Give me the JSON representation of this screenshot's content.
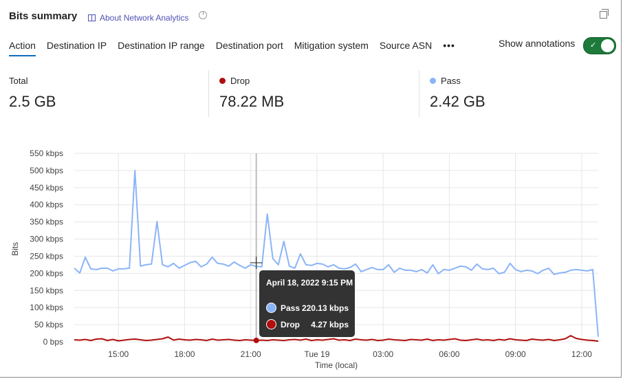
{
  "header": {
    "title": "Bits summary",
    "about_link": "About Network Analytics",
    "icons": [
      "book-icon",
      "clock-icon",
      "popout-icon"
    ]
  },
  "tabs": [
    {
      "label": "Action",
      "active": true
    },
    {
      "label": "Destination IP"
    },
    {
      "label": "Destination IP range"
    },
    {
      "label": "Destination port"
    },
    {
      "label": "Mitigation system"
    },
    {
      "label": "Source ASN"
    }
  ],
  "more_label": "•••",
  "annotations": {
    "label": "Show annotations",
    "on": true
  },
  "stats": [
    {
      "label": "Total",
      "value": "2.5 GB"
    },
    {
      "label": "Drop",
      "value": "78.22 MB",
      "color": "#b10e0e"
    },
    {
      "label": "Pass",
      "value": "2.42 GB",
      "color": "#8ab4f8"
    }
  ],
  "tooltip": {
    "date": "April 18, 2022 9:15 PM",
    "rows": [
      {
        "name": "Pass",
        "value": "220.13 kbps",
        "color": "#8ab4f8"
      },
      {
        "name": "Drop",
        "value": "4.27 kbps",
        "color": "#b10e0e"
      }
    ]
  },
  "chart_data": {
    "type": "line",
    "xlabel": "Time (local)",
    "ylabel": "Bits",
    "ylim": [
      0,
      550
    ],
    "y_ticks": [
      "0 bps",
      "50 kbps",
      "100 kbps",
      "150 kbps",
      "200 kbps",
      "250 kbps",
      "300 kbps",
      "350 kbps",
      "400 kbps",
      "450 kbps",
      "500 kbps",
      "550 kbps"
    ],
    "x_ticks": [
      {
        "label": "15:00",
        "at": "15:00"
      },
      {
        "label": "18:00",
        "at": "18:00"
      },
      {
        "label": "21:00",
        "at": "21:00"
      },
      {
        "label": "Tue 19",
        "at": "+00:00"
      },
      {
        "label": "03:00",
        "at": "+03:00"
      },
      {
        "label": "06:00",
        "at": "+06:00"
      },
      {
        "label": "09:00",
        "at": "+09:00"
      },
      {
        "label": "12:00",
        "at": "+12:00"
      }
    ],
    "x": [
      "13:00",
      "13:15",
      "13:30",
      "13:45",
      "14:00",
      "14:15",
      "14:30",
      "14:45",
      "15:00",
      "15:15",
      "15:30",
      "15:45",
      "16:00",
      "16:15",
      "16:30",
      "16:45",
      "17:00",
      "17:15",
      "17:30",
      "17:45",
      "18:00",
      "18:15",
      "18:30",
      "18:45",
      "19:00",
      "19:15",
      "19:30",
      "19:45",
      "20:00",
      "20:15",
      "20:30",
      "20:45",
      "21:00",
      "21:15",
      "21:30",
      "21:45",
      "22:00",
      "22:15",
      "22:30",
      "22:45",
      "23:00",
      "23:15",
      "23:30",
      "23:45",
      "+00:00",
      "+00:15",
      "+00:30",
      "+00:45",
      "+01:00",
      "+01:15",
      "+01:30",
      "+01:45",
      "+02:00",
      "+02:15",
      "+02:30",
      "+02:45",
      "+03:00",
      "+03:15",
      "+03:30",
      "+03:45",
      "+04:00",
      "+04:15",
      "+04:30",
      "+04:45",
      "+05:00",
      "+05:15",
      "+05:30",
      "+05:45",
      "+06:00",
      "+06:15",
      "+06:30",
      "+06:45",
      "+07:00",
      "+07:15",
      "+07:30",
      "+07:45",
      "+08:00",
      "+08:15",
      "+08:30",
      "+08:45",
      "+09:00",
      "+09:15",
      "+09:30",
      "+09:45",
      "+10:00",
      "+10:15",
      "+10:30",
      "+10:45",
      "+11:00",
      "+11:15",
      "+11:30",
      "+11:45",
      "+12:00",
      "+12:15",
      "+12:30",
      "+12:45"
    ],
    "series": [
      {
        "name": "Pass",
        "color": "#8ab4f8",
        "values": [
          215,
          201,
          247,
          213,
          211,
          215,
          215,
          207,
          213,
          213,
          215,
          500,
          221,
          225,
          227,
          351,
          225,
          219,
          229,
          215,
          223,
          231,
          235,
          219,
          227,
          247,
          229,
          227,
          221,
          233,
          223,
          215,
          225,
          220.13,
          219,
          373,
          243,
          225,
          293,
          221,
          215,
          257,
          225,
          223,
          229,
          227,
          219,
          225,
          215,
          213,
          217,
          227,
          205,
          211,
          217,
          211,
          211,
          225,
          203,
          215,
          209,
          209,
          205,
          211,
          201,
          225,
          199,
          211,
          209,
          215,
          221,
          219,
          209,
          227,
          213,
          211,
          215,
          199,
          203,
          229,
          211,
          205,
          209,
          207,
          199,
          209,
          215,
          197,
          201,
          203,
          209,
          211,
          209,
          207,
          211,
          15
        ]
      },
      {
        "name": "Drop",
        "color": "#b10e0e",
        "values": [
          6,
          5,
          7,
          4,
          8,
          9,
          4,
          7,
          3,
          5,
          7,
          8,
          6,
          4,
          5,
          7,
          9,
          14,
          5,
          8,
          6,
          5,
          7,
          6,
          4,
          8,
          5,
          6,
          7,
          5,
          4,
          6,
          5,
          4.27,
          5,
          4,
          6,
          5,
          4,
          6,
          7,
          5,
          8,
          4,
          6,
          5,
          7,
          9,
          5,
          6,
          4,
          8,
          6,
          5,
          7,
          4,
          5,
          8,
          6,
          5,
          4,
          7,
          6,
          5,
          8,
          4,
          6,
          5,
          7,
          9,
          5,
          4,
          6,
          8,
          5,
          6,
          4,
          7,
          5,
          9,
          6,
          5,
          4,
          8,
          6,
          5,
          7,
          4,
          6,
          9,
          18,
          10,
          7,
          5,
          4,
          2
        ]
      }
    ],
    "crosshair_at": "21:15",
    "grid": true
  }
}
